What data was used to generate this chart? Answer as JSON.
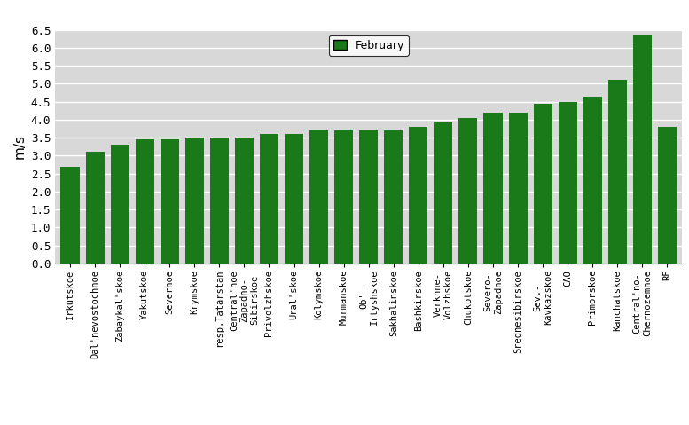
{
  "categories": [
    "Irkutskoe",
    "Dal'nevostochnoe",
    "Zabaykal'skoe",
    "Yakutskoe",
    "Severnoe",
    "Krymskoe",
    "resp.Tatarstan",
    "Central'noe\nZapadno-\nSibirskoe",
    "Privolzhskoe",
    "Ural'skoe",
    "Kolymskoe",
    "Murmanskoe",
    "Ob'-\nIrtyshskoe",
    "Sakhalinskoe",
    "Bashkirskoe",
    "Verkhne-\nVolzhskoe",
    "Chukotskoe",
    "Severo-\nZapadnoe",
    "Srednesibirskoe",
    "Sev.-\nKavkazskoe",
    "CAO",
    "Primorskoe",
    "Kamchatskoe",
    "Central'no-\nChernozemnoe",
    "RF"
  ],
  "values": [
    2.7,
    3.1,
    3.3,
    3.45,
    3.45,
    3.5,
    3.5,
    3.5,
    3.6,
    3.6,
    3.7,
    3.7,
    3.7,
    3.7,
    3.8,
    3.95,
    4.05,
    4.2,
    4.2,
    4.45,
    4.5,
    4.65,
    5.1,
    6.35,
    3.8
  ],
  "bar_color": "#1a7a1a",
  "ylabel": "m/s",
  "ylim": [
    0,
    6.5
  ],
  "yticks": [
    0,
    0.5,
    1.0,
    1.5,
    2.0,
    2.5,
    3.0,
    3.5,
    4.0,
    4.5,
    5.0,
    5.5,
    6.0,
    6.5
  ],
  "legend_label": "February",
  "legend_patch_color": "#1a7a1a",
  "fig_bg_color": "#ffffff",
  "plot_bg_color": "#d8d8d8",
  "grid_color": "#ffffff"
}
